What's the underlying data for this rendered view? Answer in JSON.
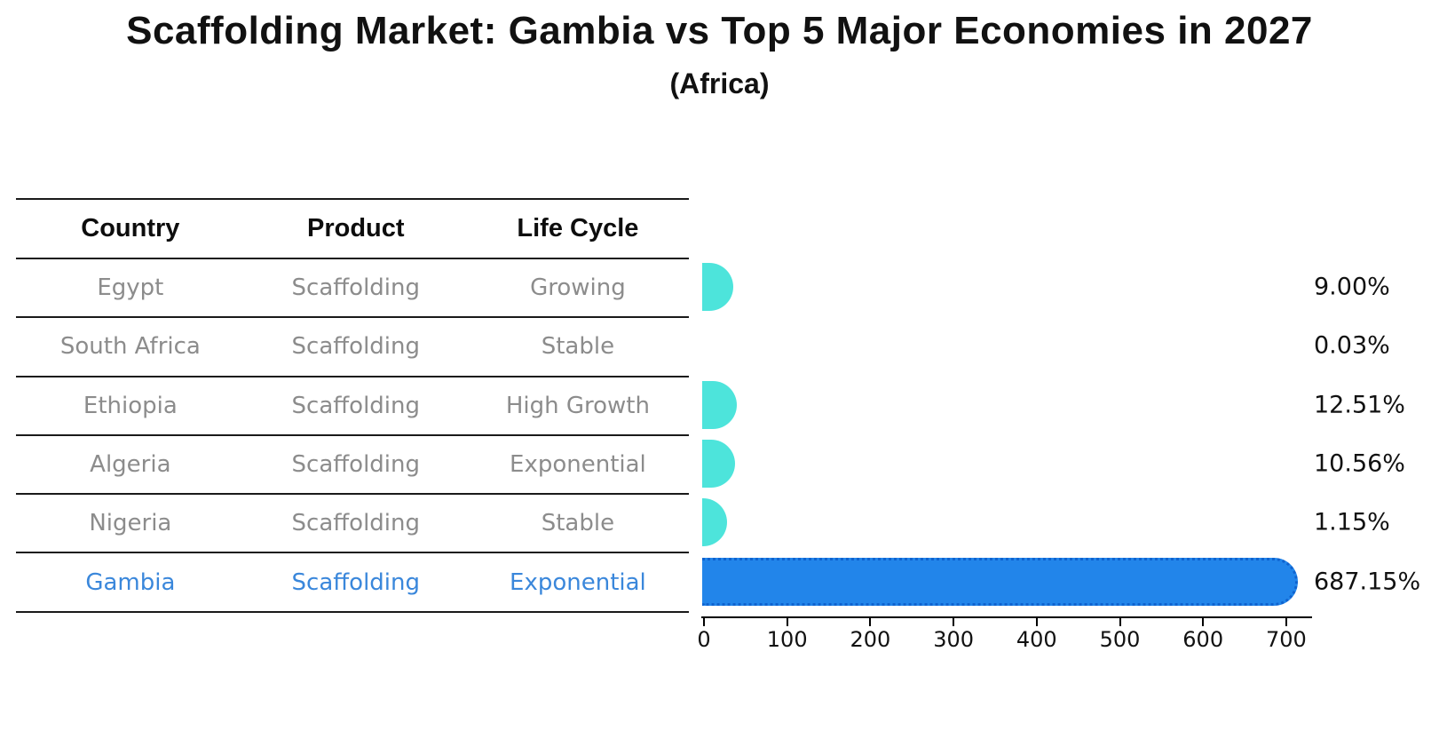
{
  "title": "Scaffolding Market: Gambia vs Top 5 Major Economies in 2027",
  "subtitle": "(Africa)",
  "table": {
    "headers": [
      "Country",
      "Product",
      "Life Cycle"
    ],
    "rows": [
      {
        "country": "Egypt",
        "product": "Scaffolding",
        "life_cycle": "Growing"
      },
      {
        "country": "South Africa",
        "product": "Scaffolding",
        "life_cycle": "Stable"
      },
      {
        "country": "Ethiopia",
        "product": "Scaffolding",
        "life_cycle": "High Growth"
      },
      {
        "country": "Algeria",
        "product": "Scaffolding",
        "life_cycle": "Exponential"
      },
      {
        "country": "Nigeria",
        "product": "Scaffolding",
        "life_cycle": "Stable"
      },
      {
        "country": "Gambia",
        "product": "Scaffolding",
        "life_cycle": "Exponential"
      }
    ]
  },
  "chart_data": {
    "type": "bar",
    "orientation": "horizontal",
    "title": "Scaffolding Market: Gambia vs Top 5 Major Economies in 2027",
    "subtitle": "(Africa)",
    "categories": [
      "Egypt",
      "South Africa",
      "Ethiopia",
      "Algeria",
      "Nigeria",
      "Gambia"
    ],
    "values": [
      9.0,
      0.03,
      12.51,
      10.56,
      1.15,
      687.15
    ],
    "value_labels": [
      "9.00%",
      "0.03%",
      "12.51%",
      "10.56%",
      "1.15%",
      "687.15%"
    ],
    "highlight_category": "Gambia",
    "highlight_index": 5,
    "x_ticks": [
      0,
      100,
      200,
      300,
      400,
      500,
      600,
      700
    ],
    "xlim": [
      0,
      735
    ],
    "grid": false,
    "legend": false,
    "xlabel": "",
    "ylabel": ""
  },
  "colors": {
    "bar_default": "#4de4db",
    "bar_highlight": "#2285ea",
    "bar_highlight_edge": "#0f63cf",
    "highlight_text": "#3a87db",
    "muted_text": "#8c8c8c",
    "heading_text": "#111111",
    "table_line": "#1a1a1a",
    "axis": "#000000"
  }
}
